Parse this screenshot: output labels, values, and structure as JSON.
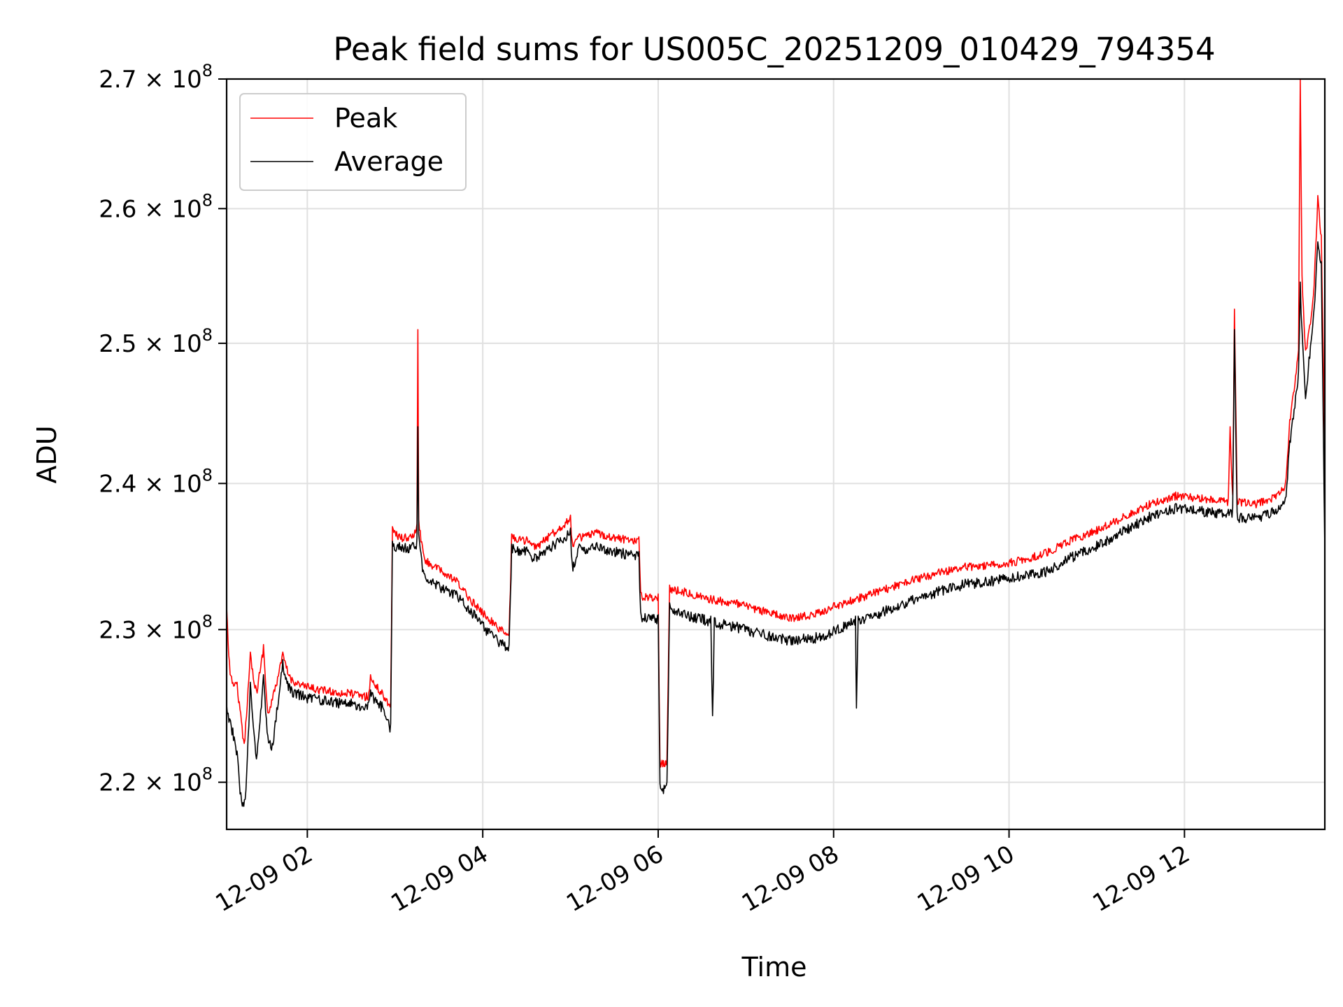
{
  "chart_data": {
    "type": "line",
    "title": "Peak field sums for US005C_20251209_010429_794354",
    "xlabel": "Time",
    "ylabel": "ADU",
    "x_unit": "hours since 12-09 00:00",
    "xlim": [
      1.08,
      13.6
    ],
    "ylim": [
      217000000,
      270000000
    ],
    "y_scale": "log",
    "grid": true,
    "legend_position": "upper-left",
    "x_ticks": [
      {
        "value": 2,
        "label": "12-09 02"
      },
      {
        "value": 4,
        "label": "12-09 04"
      },
      {
        "value": 6,
        "label": "12-09 06"
      },
      {
        "value": 8,
        "label": "12-09 08"
      },
      {
        "value": 10,
        "label": "12-09 10"
      },
      {
        "value": 12,
        "label": "12-09 12"
      }
    ],
    "y_ticks": [
      {
        "value": 220000000,
        "mantissa": "2.2",
        "exp": "8"
      },
      {
        "value": 230000000,
        "mantissa": "2.3",
        "exp": "8"
      },
      {
        "value": 240000000,
        "mantissa": "2.4",
        "exp": "8"
      },
      {
        "value": 250000000,
        "mantissa": "2.5",
        "exp": "8"
      },
      {
        "value": 260000000,
        "mantissa": "2.6",
        "exp": "8"
      },
      {
        "value": 270000000,
        "mantissa": "2.7",
        "exp": "8"
      }
    ],
    "series": [
      {
        "name": "Peak",
        "color": "#ff0000",
        "points": [
          [
            1.08,
            231.5
          ],
          [
            1.12,
            227.0
          ],
          [
            1.2,
            226.5
          ],
          [
            1.28,
            222.5
          ],
          [
            1.35,
            228.5
          ],
          [
            1.42,
            226.0
          ],
          [
            1.5,
            229.0
          ],
          [
            1.55,
            224.5
          ],
          [
            1.62,
            226.0
          ],
          [
            1.72,
            228.5
          ],
          [
            1.8,
            227.0
          ],
          [
            1.95,
            226.5
          ],
          [
            2.2,
            226.2
          ],
          [
            2.5,
            226.0
          ],
          [
            2.7,
            225.8
          ],
          [
            2.72,
            227.0
          ],
          [
            2.85,
            226.0
          ],
          [
            2.95,
            225.2
          ],
          [
            2.97,
            237.0
          ],
          [
            3.05,
            236.5
          ],
          [
            3.2,
            236.5
          ],
          [
            3.25,
            237.2
          ],
          [
            3.26,
            251.0
          ],
          [
            3.27,
            237.5
          ],
          [
            3.33,
            235.0
          ],
          [
            3.5,
            234.3
          ],
          [
            3.7,
            233.5
          ],
          [
            3.9,
            232.0
          ],
          [
            4.1,
            230.8
          ],
          [
            4.3,
            229.8
          ],
          [
            4.33,
            236.5
          ],
          [
            4.5,
            236.3
          ],
          [
            4.6,
            235.8
          ],
          [
            4.8,
            236.8
          ],
          [
            5.0,
            237.8
          ],
          [
            5.02,
            236.0
          ],
          [
            5.1,
            236.5
          ],
          [
            5.3,
            236.8
          ],
          [
            5.6,
            236.4
          ],
          [
            5.78,
            236.3
          ],
          [
            5.8,
            232.5
          ],
          [
            6.0,
            232.4
          ],
          [
            6.02,
            221.5
          ],
          [
            6.1,
            221.5
          ],
          [
            6.13,
            233.0
          ],
          [
            6.3,
            232.8
          ],
          [
            6.6,
            232.3
          ],
          [
            6.9,
            232.0
          ],
          [
            7.2,
            231.5
          ],
          [
            7.5,
            231.0
          ],
          [
            7.8,
            231.3
          ],
          [
            8.0,
            231.8
          ],
          [
            8.3,
            232.4
          ],
          [
            8.6,
            233.0
          ],
          [
            8.9,
            233.6
          ],
          [
            9.2,
            234.1
          ],
          [
            9.5,
            234.5
          ],
          [
            9.8,
            234.6
          ],
          [
            10.1,
            234.9
          ],
          [
            10.4,
            235.4
          ],
          [
            10.7,
            236.3
          ],
          [
            11.0,
            237.0
          ],
          [
            11.3,
            237.9
          ],
          [
            11.6,
            238.8
          ],
          [
            11.9,
            239.4
          ],
          [
            12.2,
            239.2
          ],
          [
            12.5,
            239.0
          ],
          [
            12.52,
            244.0
          ],
          [
            12.55,
            239.2
          ],
          [
            12.57,
            252.5
          ],
          [
            12.6,
            239.0
          ],
          [
            12.8,
            238.8
          ],
          [
            13.0,
            239.2
          ],
          [
            13.15,
            240.0
          ],
          [
            13.2,
            244.5
          ],
          [
            13.3,
            249.5
          ],
          [
            13.32,
            270.0
          ],
          [
            13.34,
            255.0
          ],
          [
            13.38,
            249.5
          ],
          [
            13.42,
            251.0
          ],
          [
            13.47,
            253.5
          ],
          [
            13.52,
            261.0
          ],
          [
            13.56,
            258.0
          ],
          [
            13.6,
            242.5
          ]
        ]
      },
      {
        "name": "Average",
        "color": "#000000",
        "points": [
          [
            1.08,
            225.0
          ],
          [
            1.15,
            223.5
          ],
          [
            1.2,
            222.0
          ],
          [
            1.25,
            218.8
          ],
          [
            1.3,
            219.5
          ],
          [
            1.35,
            226.5
          ],
          [
            1.42,
            221.5
          ],
          [
            1.5,
            227.0
          ],
          [
            1.55,
            223.0
          ],
          [
            1.6,
            222.5
          ],
          [
            1.72,
            228.0
          ],
          [
            1.8,
            226.3
          ],
          [
            1.95,
            225.9
          ],
          [
            2.2,
            225.6
          ],
          [
            2.5,
            225.4
          ],
          [
            2.7,
            225.2
          ],
          [
            2.72,
            226.0
          ],
          [
            2.85,
            225.2
          ],
          [
            2.95,
            223.8
          ],
          [
            2.97,
            236.0
          ],
          [
            3.05,
            235.9
          ],
          [
            3.2,
            235.9
          ],
          [
            3.25,
            236.2
          ],
          [
            3.26,
            244.0
          ],
          [
            3.27,
            236.5
          ],
          [
            3.33,
            233.8
          ],
          [
            3.5,
            233.2
          ],
          [
            3.7,
            232.6
          ],
          [
            3.9,
            231.3
          ],
          [
            4.1,
            229.9
          ],
          [
            4.3,
            229.0
          ],
          [
            4.33,
            235.8
          ],
          [
            4.5,
            235.6
          ],
          [
            4.6,
            235.1
          ],
          [
            4.8,
            236.0
          ],
          [
            5.0,
            236.9
          ],
          [
            5.02,
            234.5
          ],
          [
            5.1,
            235.8
          ],
          [
            5.3,
            235.9
          ],
          [
            5.6,
            235.5
          ],
          [
            5.78,
            235.3
          ],
          [
            5.8,
            231.2
          ],
          [
            6.0,
            231.0
          ],
          [
            6.02,
            219.9
          ],
          [
            6.1,
            220.0
          ],
          [
            6.13,
            231.8
          ],
          [
            6.3,
            231.3
          ],
          [
            6.6,
            230.9
          ],
          [
            6.62,
            224.3
          ],
          [
            6.64,
            230.8
          ],
          [
            6.9,
            230.5
          ],
          [
            7.2,
            230.0
          ],
          [
            7.5,
            229.6
          ],
          [
            7.8,
            229.8
          ],
          [
            8.0,
            230.2
          ],
          [
            8.25,
            230.9
          ],
          [
            8.26,
            224.8
          ],
          [
            8.28,
            230.9
          ],
          [
            8.6,
            231.6
          ],
          [
            8.9,
            232.3
          ],
          [
            9.2,
            232.9
          ],
          [
            9.5,
            233.4
          ],
          [
            9.8,
            233.6
          ],
          [
            10.1,
            233.9
          ],
          [
            10.4,
            234.2
          ],
          [
            10.7,
            235.2
          ],
          [
            11.0,
            236.0
          ],
          [
            11.3,
            237.0
          ],
          [
            11.6,
            238.0
          ],
          [
            11.9,
            238.6
          ],
          [
            12.2,
            238.4
          ],
          [
            12.5,
            238.2
          ],
          [
            12.55,
            238.3
          ],
          [
            12.57,
            251.0
          ],
          [
            12.6,
            238.0
          ],
          [
            12.8,
            237.9
          ],
          [
            13.0,
            238.3
          ],
          [
            13.15,
            239.0
          ],
          [
            13.2,
            243.0
          ],
          [
            13.3,
            248.0
          ],
          [
            13.32,
            254.5
          ],
          [
            13.34,
            251.0
          ],
          [
            13.38,
            246.0
          ],
          [
            13.42,
            249.0
          ],
          [
            13.47,
            252.0
          ],
          [
            13.52,
            257.5
          ],
          [
            13.56,
            256.0
          ],
          [
            13.6,
            235.5
          ]
        ]
      }
    ]
  }
}
